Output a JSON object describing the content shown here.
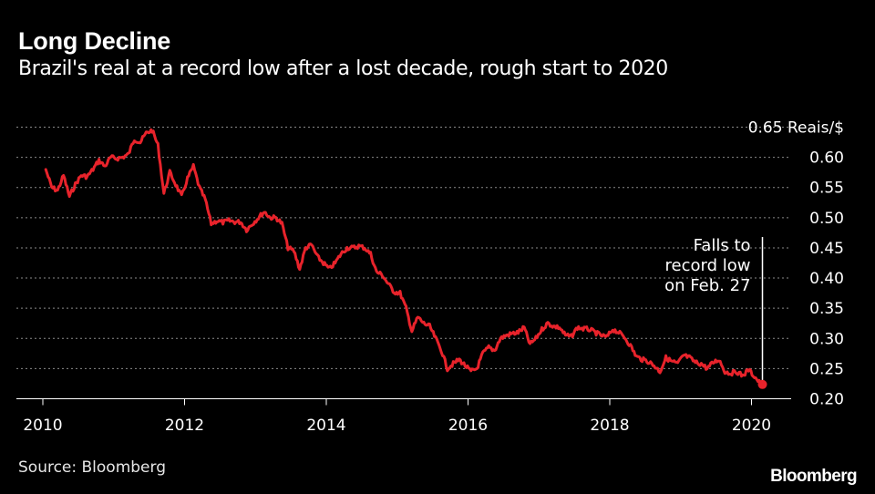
{
  "header": {
    "title": "Long Decline",
    "subtitle": "Brazil's real at a record low after a lost decade, rough start to 2020"
  },
  "footer": {
    "source": "Source: Bloomberg",
    "brand": "Bloomberg"
  },
  "colors": {
    "background": "#000000",
    "series": "#e8232b",
    "grid": "#8a8a8a",
    "text": "#ffffff"
  },
  "chart_data": {
    "type": "line",
    "title": "Long Decline",
    "subtitle": "Brazil's real at a record low after a lost decade, rough start to 2020",
    "xlabel": "",
    "ylabel": "",
    "x_ticks": [
      "2010",
      "2012",
      "2014",
      "2016",
      "2018",
      "2020"
    ],
    "y_ticks": [
      "0.65 Reais/$",
      "0.60",
      "0.55",
      "0.50",
      "0.45",
      "0.40",
      "0.35",
      "0.30",
      "0.25",
      "0.20"
    ],
    "y_tick_values": [
      0.65,
      0.6,
      0.55,
      0.5,
      0.45,
      0.4,
      0.35,
      0.3,
      0.25,
      0.2
    ],
    "xlim": [
      "2010-01",
      "2020-03"
    ],
    "ylim": [
      0.2,
      0.65
    ],
    "y_axis_position": "right",
    "grid": "horizontal-dotted",
    "annotation": {
      "lines": [
        "Falls to",
        "record low",
        "on Feb. 27"
      ],
      "x": "2020-02-27",
      "y": 0.2237
    },
    "series": [
      {
        "color": "#e8232b",
        "points": [
          [
            "2010-01",
            0.58
          ],
          [
            "2010-02",
            0.55
          ],
          [
            "2010-03",
            0.545
          ],
          [
            "2010-04",
            0.57
          ],
          [
            "2010-05",
            0.535
          ],
          [
            "2010-06",
            0.555
          ],
          [
            "2010-07",
            0.57
          ],
          [
            "2010-08",
            0.568
          ],
          [
            "2010-09",
            0.58
          ],
          [
            "2010-10",
            0.595
          ],
          [
            "2010-11",
            0.585
          ],
          [
            "2010-12",
            0.6
          ],
          [
            "2011-01",
            0.598
          ],
          [
            "2011-02",
            0.6
          ],
          [
            "2011-03",
            0.605
          ],
          [
            "2011-04",
            0.63
          ],
          [
            "2011-05",
            0.625
          ],
          [
            "2011-06",
            0.64
          ],
          [
            "2011-07",
            0.645
          ],
          [
            "2011-08",
            0.62
          ],
          [
            "2011-09",
            0.54
          ],
          [
            "2011-10",
            0.575
          ],
          [
            "2011-11",
            0.555
          ],
          [
            "2011-12",
            0.535
          ],
          [
            "2012-01",
            0.565
          ],
          [
            "2012-02",
            0.585
          ],
          [
            "2012-03",
            0.55
          ],
          [
            "2012-04",
            0.53
          ],
          [
            "2012-05",
            0.49
          ],
          [
            "2012-06",
            0.495
          ],
          [
            "2012-07",
            0.492
          ],
          [
            "2012-08",
            0.495
          ],
          [
            "2012-09",
            0.493
          ],
          [
            "2012-10",
            0.493
          ],
          [
            "2012-11",
            0.48
          ],
          [
            "2012-12",
            0.49
          ],
          [
            "2013-01",
            0.5
          ],
          [
            "2013-02",
            0.51
          ],
          [
            "2013-03",
            0.5
          ],
          [
            "2013-04",
            0.5
          ],
          [
            "2013-05",
            0.49
          ],
          [
            "2013-06",
            0.45
          ],
          [
            "2013-07",
            0.445
          ],
          [
            "2013-08",
            0.415
          ],
          [
            "2013-09",
            0.45
          ],
          [
            "2013-10",
            0.455
          ],
          [
            "2013-11",
            0.435
          ],
          [
            "2013-12",
            0.425
          ],
          [
            "2014-01",
            0.415
          ],
          [
            "2014-02",
            0.425
          ],
          [
            "2014-03",
            0.44
          ],
          [
            "2014-04",
            0.45
          ],
          [
            "2014-05",
            0.45
          ],
          [
            "2014-06",
            0.453
          ],
          [
            "2014-07",
            0.45
          ],
          [
            "2014-08",
            0.44
          ],
          [
            "2014-09",
            0.41
          ],
          [
            "2014-10",
            0.405
          ],
          [
            "2014-11",
            0.39
          ],
          [
            "2014-12",
            0.377
          ],
          [
            "2015-01",
            0.375
          ],
          [
            "2015-02",
            0.35
          ],
          [
            "2015-03",
            0.312
          ],
          [
            "2015-04",
            0.335
          ],
          [
            "2015-05",
            0.325
          ],
          [
            "2015-06",
            0.32
          ],
          [
            "2015-07",
            0.3
          ],
          [
            "2015-08",
            0.28
          ],
          [
            "2015-09",
            0.25
          ],
          [
            "2015-10",
            0.258
          ],
          [
            "2015-11",
            0.265
          ],
          [
            "2015-12",
            0.255
          ],
          [
            "2016-01",
            0.245
          ],
          [
            "2016-02",
            0.25
          ],
          [
            "2016-03",
            0.275
          ],
          [
            "2016-04",
            0.285
          ],
          [
            "2016-05",
            0.28
          ],
          [
            "2016-06",
            0.3
          ],
          [
            "2016-07",
            0.305
          ],
          [
            "2016-08",
            0.308
          ],
          [
            "2016-09",
            0.31
          ],
          [
            "2016-10",
            0.318
          ],
          [
            "2016-11",
            0.29
          ],
          [
            "2016-12",
            0.3
          ],
          [
            "2017-01",
            0.315
          ],
          [
            "2017-02",
            0.325
          ],
          [
            "2017-03",
            0.32
          ],
          [
            "2017-04",
            0.318
          ],
          [
            "2017-05",
            0.305
          ],
          [
            "2017-06",
            0.303
          ],
          [
            "2017-07",
            0.318
          ],
          [
            "2017-08",
            0.316
          ],
          [
            "2017-09",
            0.315
          ],
          [
            "2017-10",
            0.31
          ],
          [
            "2017-11",
            0.305
          ],
          [
            "2017-12",
            0.302
          ],
          [
            "2018-01",
            0.315
          ],
          [
            "2018-02",
            0.31
          ],
          [
            "2018-03",
            0.302
          ],
          [
            "2018-04",
            0.288
          ],
          [
            "2018-05",
            0.27
          ],
          [
            "2018-06",
            0.265
          ],
          [
            "2018-07",
            0.262
          ],
          [
            "2018-08",
            0.255
          ],
          [
            "2018-09",
            0.245
          ],
          [
            "2018-10",
            0.268
          ],
          [
            "2018-11",
            0.262
          ],
          [
            "2018-12",
            0.258
          ],
          [
            "2019-01",
            0.272
          ],
          [
            "2019-02",
            0.268
          ],
          [
            "2019-03",
            0.26
          ],
          [
            "2019-04",
            0.258
          ],
          [
            "2019-05",
            0.25
          ],
          [
            "2019-06",
            0.26
          ],
          [
            "2019-07",
            0.265
          ],
          [
            "2019-08",
            0.245
          ],
          [
            "2019-09",
            0.242
          ],
          [
            "2019-10",
            0.245
          ],
          [
            "2019-11",
            0.238
          ],
          [
            "2019-12",
            0.248
          ],
          [
            "2020-01",
            0.237
          ],
          [
            "2020-02",
            0.225
          ],
          [
            "2020-02-27",
            0.2237
          ]
        ]
      }
    ]
  }
}
